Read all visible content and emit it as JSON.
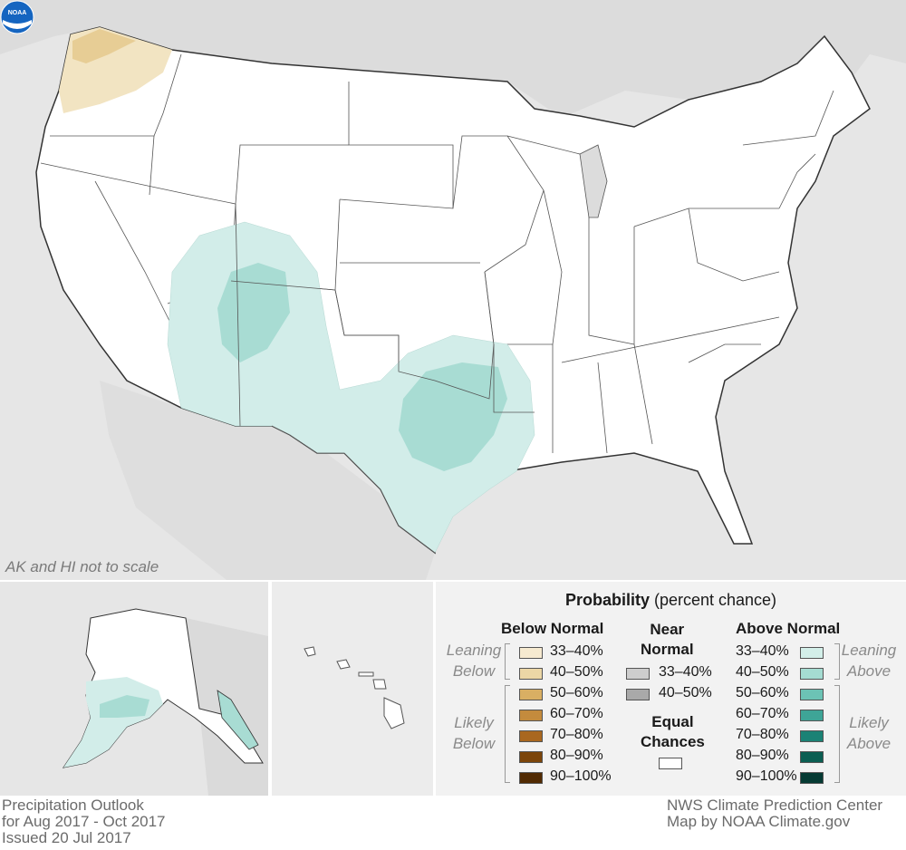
{
  "map": {
    "note": "AK and HI not to scale",
    "logo": "NOAA",
    "colors": {
      "land_outside": "#e6e6e6",
      "states_fill": "#ffffff",
      "leaning_above": "#d2ede9",
      "mod_above": "#a8dcd3",
      "leaning_below": "#f2e4c2",
      "mod_below": "#e7cd95"
    }
  },
  "legend": {
    "title_bold": "Probability",
    "title_rest": " (percent chance)",
    "below": {
      "header": "Below Normal",
      "leaning_label_1": "Leaning",
      "leaning_label_2": "Below",
      "likely_label_1": "Likely",
      "likely_label_2": "Below",
      "items": [
        {
          "label": "33–40%",
          "color": "#f6ead0"
        },
        {
          "label": "40–50%",
          "color": "#ecd7a6"
        },
        {
          "label": "50–60%",
          "color": "#d9af63"
        },
        {
          "label": "60–70%",
          "color": "#c48b3d"
        },
        {
          "label": "70–80%",
          "color": "#a9671f"
        },
        {
          "label": "80–90%",
          "color": "#7c450a"
        },
        {
          "label": "90–100%",
          "color": "#512a02"
        }
      ]
    },
    "near": {
      "header_1": "Near",
      "header_2": "Normal",
      "items": [
        {
          "label": "33–40%",
          "color": "#cdcdcd"
        },
        {
          "label": "40–50%",
          "color": "#a9a9a9"
        }
      ],
      "equal_1": "Equal",
      "equal_2": "Chances",
      "equal_color": "#ffffff"
    },
    "above": {
      "header": "Above Normal",
      "leaning_label_1": "Leaning",
      "leaning_label_2": "Above",
      "likely_label_1": "Likely",
      "likely_label_2": "Above",
      "items": [
        {
          "label": "33–40%",
          "color": "#d3efe9"
        },
        {
          "label": "40–50%",
          "color": "#a5dcd2"
        },
        {
          "label": "50–60%",
          "color": "#6cc3b5"
        },
        {
          "label": "60–70%",
          "color": "#3ea597"
        },
        {
          "label": "70–80%",
          "color": "#1b8275"
        },
        {
          "label": "80–90%",
          "color": "#0b5e52"
        },
        {
          "label": "90–100%",
          "color": "#053a33"
        }
      ]
    }
  },
  "footer": {
    "left_1": "Precipitation Outlook",
    "left_2": "for Aug 2017 - Oct 2017",
    "left_3": "Issued 20 Jul 2017",
    "right_1": "NWS Climate Prediction Center",
    "right_2": "Map by NOAA Climate.gov"
  }
}
